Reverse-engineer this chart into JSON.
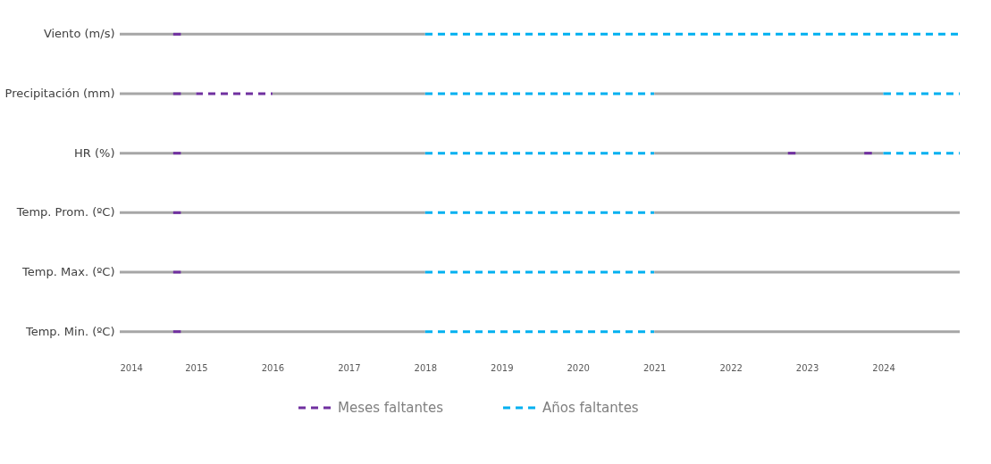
{
  "chart_data": {
    "type": "bar",
    "orientation": "horizontal",
    "categories": [
      "Viento (m/s)",
      "Precipitación (mm)",
      "HR (%)",
      "Temp. Prom. (ºC)",
      "Temp. Max. (ºC)",
      "Temp. Min. (ºC)"
    ],
    "xlim": [
      2014,
      2025
    ],
    "xticks": [
      2014,
      2015,
      2016,
      2017,
      2018,
      2019,
      2020,
      2021,
      2022,
      2023,
      2024
    ],
    "grid": false,
    "legend": "bottom",
    "series": [
      {
        "color": "#a6a6a6",
        "line_style": "solid",
        "base": [
          2014,
          2014,
          2014,
          2014,
          2014,
          2014
        ],
        "values": [
          4,
          1,
          4,
          4,
          4,
          4
        ]
      },
      {
        "color": "#a6a6a6",
        "line_style": "solid",
        "base": [
          null,
          2016,
          null,
          null,
          null,
          null
        ],
        "values": [
          null,
          2,
          null,
          null,
          null,
          null
        ]
      },
      {
        "color": "#a6a6a6",
        "line_style": "solid",
        "base": [
          null,
          2021,
          2021,
          2021,
          2021,
          2021
        ],
        "values": [
          null,
          3,
          3,
          4,
          4,
          4
        ]
      },
      {
        "color": "#7030a0",
        "line_style": "solid",
        "base": [
          2014.7,
          2014.7,
          2014.7,
          2014.7,
          2014.7,
          2014.7
        ],
        "values": [
          0.1,
          0.1,
          0.1,
          0.1,
          0.1,
          0.1
        ]
      },
      {
        "name": "Meses faltantes",
        "color": "#7030a0",
        "line_style": "dashed",
        "base": [
          null,
          2015,
          null,
          null,
          null,
          null
        ],
        "values": [
          null,
          1,
          null,
          null,
          null,
          null
        ]
      },
      {
        "color": "#7030a0",
        "line_style": "solid",
        "base": [
          null,
          null,
          2022.75,
          null,
          null,
          null
        ],
        "values": [
          null,
          null,
          0.1,
          null,
          null,
          null
        ]
      },
      {
        "color": "#7030a0",
        "line_style": "solid",
        "base": [
          null,
          null,
          2023.75,
          null,
          null,
          null
        ],
        "values": [
          null,
          null,
          0.1,
          null,
          null,
          null
        ]
      },
      {
        "name": "Años faltantes",
        "color": "#00b0f0",
        "line_style": "dashed",
        "base": [
          2018,
          2018,
          2018,
          2018,
          2018,
          2018
        ],
        "values": [
          7,
          3,
          3,
          3,
          3,
          3
        ]
      },
      {
        "color": "#00b0f0",
        "line_style": "dashed",
        "base": [
          null,
          2024,
          2024,
          null,
          null,
          null
        ],
        "values": [
          null,
          1,
          1,
          null,
          null,
          null
        ]
      }
    ]
  }
}
